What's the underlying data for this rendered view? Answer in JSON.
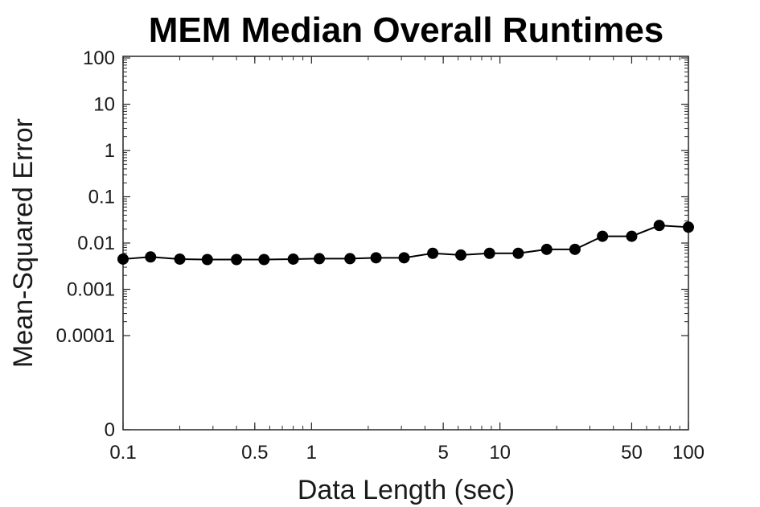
{
  "chart_data": {
    "type": "line",
    "title": "MEM Median Overall Runtimes",
    "xlabel": "Data Length (sec)",
    "ylabel": "Mean-Squared Error",
    "xscale": "log",
    "yscale": "log",
    "xlim": [
      0.1,
      100
    ],
    "ylim": [
      0,
      100
    ],
    "grid": false,
    "x_ticks": [
      {
        "value": 0.1,
        "label": "0.1"
      },
      {
        "value": 0.5,
        "label": "0.5"
      },
      {
        "value": 1,
        "label": "1"
      },
      {
        "value": 5,
        "label": "5"
      },
      {
        "value": 10,
        "label": "10"
      },
      {
        "value": 50,
        "label": "50"
      },
      {
        "value": 100,
        "label": "100"
      }
    ],
    "y_ticks": [
      {
        "value": 100,
        "label": "100"
      },
      {
        "value": 10,
        "label": "10"
      },
      {
        "value": 1,
        "label": "1"
      },
      {
        "value": 0.1,
        "label": "0.1"
      },
      {
        "value": 0.01,
        "label": "0.01"
      },
      {
        "value": 0.001,
        "label": "0.001"
      },
      {
        "value": 0.0001,
        "label": "0.0001"
      },
      {
        "value": 0,
        "label": "0"
      }
    ],
    "series": [
      {
        "color": "#000000",
        "marker": "circle",
        "x": [
          0.1,
          0.14,
          0.2,
          0.28,
          0.4,
          0.56,
          0.8,
          1.1,
          1.6,
          2.2,
          3.1,
          4.4,
          6.2,
          8.8,
          12.5,
          17.7,
          25,
          35,
          50,
          70,
          100
        ],
        "y": [
          0.0045,
          0.005,
          0.0045,
          0.0044,
          0.0044,
          0.0044,
          0.0045,
          0.0046,
          0.0046,
          0.0048,
          0.0048,
          0.006,
          0.0055,
          0.006,
          0.006,
          0.0073,
          0.0073,
          0.014,
          0.014,
          0.024,
          0.022
        ]
      }
    ]
  }
}
